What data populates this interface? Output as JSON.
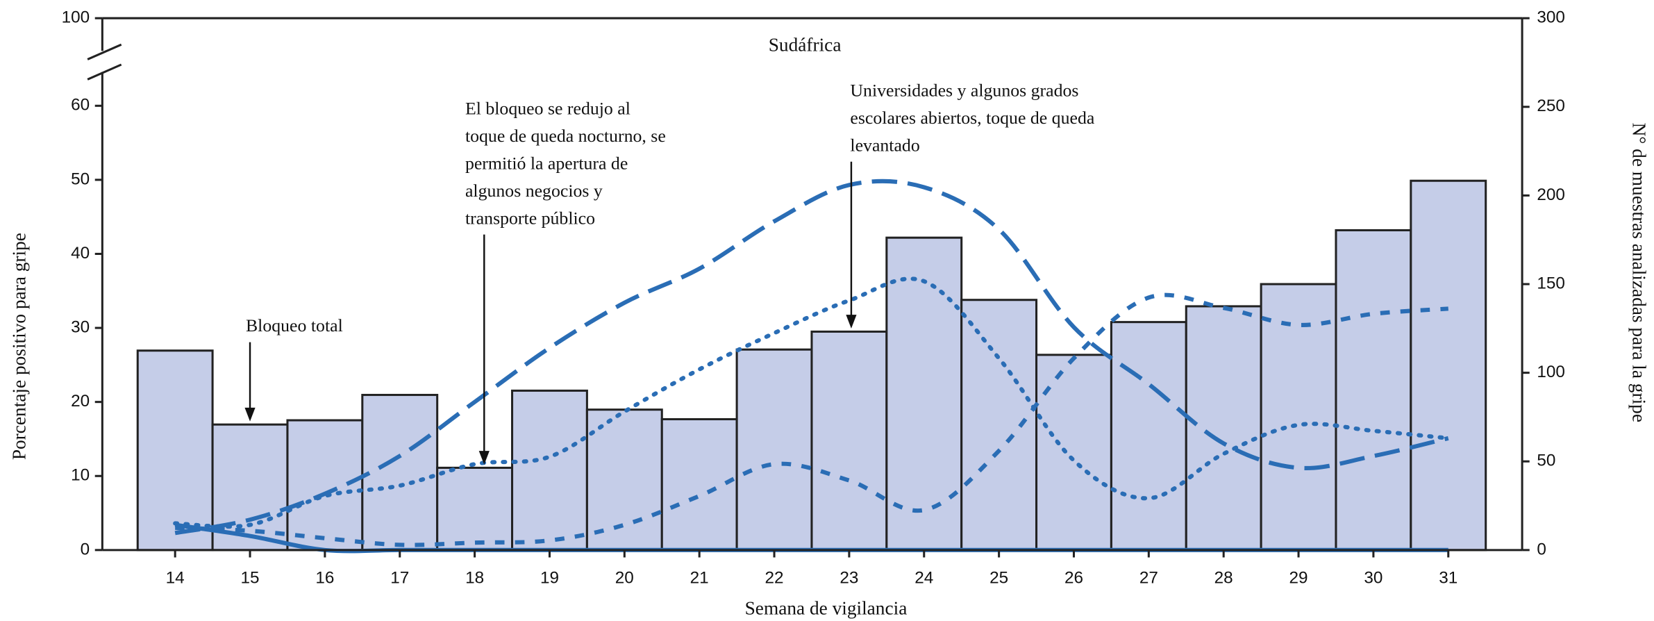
{
  "chart_data": {
    "type": "combo",
    "title": "Sudáfrica",
    "xlabel": "Semana de vigilancia",
    "ylabel": "Porcentaje positivo para gripe",
    "y2label": "N° de muestras analizadas para la gripe",
    "categories": [
      "14",
      "15",
      "16",
      "17",
      "18",
      "19",
      "20",
      "21",
      "22",
      "23",
      "24",
      "25",
      "26",
      "27",
      "28",
      "29",
      "30",
      "31"
    ],
    "ylim": [
      0,
      100
    ],
    "ybreak": [
      60,
      100
    ],
    "yticks": [
      0,
      10,
      20,
      30,
      40,
      50,
      60,
      100
    ],
    "y2lim": [
      0,
      300
    ],
    "y2ticks": [
      0,
      50,
      100,
      150,
      200,
      250,
      300
    ],
    "series": [
      {
        "type": "bar",
        "axis": "y2",
        "color": "#c5cde8",
        "values": [
          112.5,
          70.8,
          73.2,
          87.5,
          46.4,
          89.9,
          79.2,
          73.8,
          113.1,
          123.2,
          176.2,
          141.1,
          110.1,
          128.6,
          137.5,
          150,
          180.4,
          208.3
        ]
      },
      {
        "type": "line",
        "axis": "y",
        "color": "#2a6db5",
        "style": "long-dash",
        "values": [
          2.3,
          4.1,
          7.6,
          12.7,
          20,
          27.3,
          33.4,
          38,
          44.4,
          49.3,
          49,
          43.3,
          30.1,
          22.4,
          14.4,
          11.1,
          12.7,
          15.1
        ]
      },
      {
        "type": "line",
        "axis": "y",
        "color": "#2a6db5",
        "style": "dotted",
        "values": [
          3.6,
          3.4,
          7.3,
          8.7,
          11.6,
          12.6,
          18.7,
          24.4,
          29.3,
          33.7,
          36.3,
          25.9,
          12.1,
          7,
          13,
          16.9,
          16.1,
          15.1
        ]
      },
      {
        "type": "line",
        "axis": "y",
        "color": "#2a6db5",
        "style": "short-dash",
        "values": [
          3,
          2.6,
          1.6,
          0.7,
          1,
          1.3,
          3.4,
          7.3,
          11.6,
          9.4,
          5.4,
          13.4,
          25.9,
          34.1,
          32.7,
          30.4,
          31.9,
          32.6
        ]
      },
      {
        "type": "line",
        "axis": "y",
        "color": "#2a6db5",
        "style": "solid",
        "values": [
          3.4,
          1.9,
          0,
          0,
          0,
          0,
          0,
          0,
          0,
          0,
          0,
          0,
          0,
          0,
          0,
          0,
          0,
          0
        ]
      }
    ],
    "annotations": [
      {
        "x": "15",
        "text": [
          "Bloqueo total"
        ]
      },
      {
        "x": "18",
        "text": [
          "El bloqueo se redujo al",
          "toque de queda nocturno, se",
          "permitió la apertura de",
          "algunos negocios y",
          "transporte público"
        ]
      },
      {
        "x": "23",
        "text": [
          "Universidades y algunos grados",
          "escolares abiertos, toque de queda",
          "levantado"
        ]
      }
    ]
  }
}
